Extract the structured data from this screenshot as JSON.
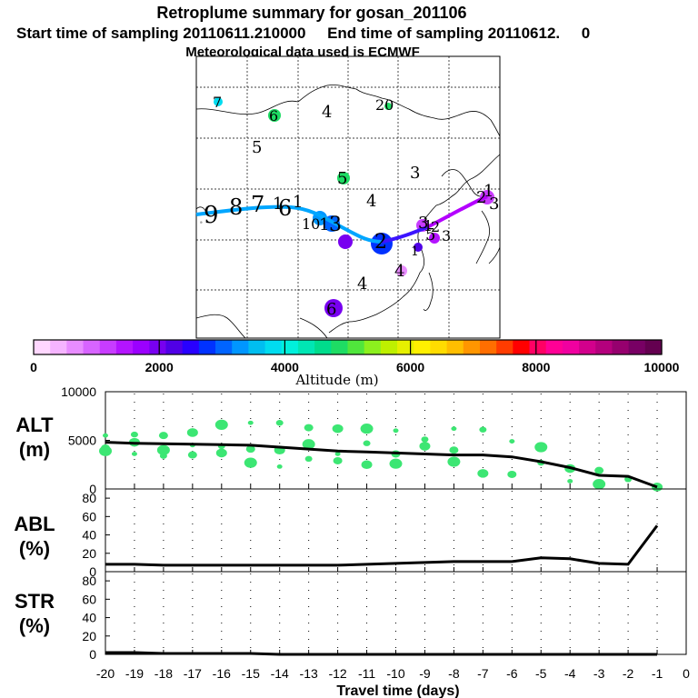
{
  "title": {
    "line1": "Retroplume summary for gosan_201106",
    "line2": "Start time of sampling 20110611.210000     End time of sampling 20110612.     0",
    "line3": "Meteorological data used is ECMWF"
  },
  "colorbar": {
    "ticks": [
      "0",
      "2000",
      "4000",
      "6000",
      "8000",
      "10000"
    ],
    "label": "Altitude  (m)",
    "colors": [
      "#ffd7ff",
      "#f5b4ff",
      "#e88cff",
      "#d764ff",
      "#c83cff",
      "#b414ff",
      "#9b00ff",
      "#7800f0",
      "#5000e6",
      "#2800ff",
      "#0032ff",
      "#0064ff",
      "#0096ff",
      "#00bef0",
      "#00dcf0",
      "#00f0dc",
      "#00e6b4",
      "#00dc8c",
      "#1edc64",
      "#50e63c",
      "#8cf01e",
      "#bef000",
      "#e6f000",
      "#fff000",
      "#ffdc00",
      "#ffbe00",
      "#ff9600",
      "#ff6e00",
      "#ff3c00",
      "#ff0000",
      "#ff0064",
      "#ff0096",
      "#f000a0",
      "#d2008c",
      "#b4007d",
      "#96006e",
      "#780064",
      "#640050"
    ]
  },
  "map": {
    "path_labels": [
      "9",
      "8",
      "7",
      "6",
      "1",
      "1",
      "10",
      "1",
      "3",
      "2",
      "1",
      "3",
      "2",
      "3",
      "1",
      "2",
      "1",
      "3"
    ],
    "cluster_labels": [
      "7",
      "6",
      "4",
      "20",
      "5",
      "5",
      "3",
      "4",
      "5",
      "4",
      "4",
      "6",
      "9"
    ]
  },
  "chart_data": [
    {
      "type": "line",
      "panel": "ALT",
      "ylabel": "ALT",
      "yunit": "(m)",
      "ylim": [
        0,
        10000
      ],
      "yticks": [
        "10000",
        "5000",
        "0"
      ],
      "x": [
        -20,
        -19,
        -18,
        -17,
        -16,
        -15,
        -14,
        -13,
        -12,
        -11,
        -10,
        -9,
        -8,
        -7,
        -6,
        -5,
        -4,
        -3,
        -2,
        -1
      ],
      "series": [
        {
          "name": "mean altitude",
          "values": [
            4800,
            4700,
            4650,
            4600,
            4550,
            4500,
            4300,
            4100,
            3900,
            3800,
            3700,
            3600,
            3500,
            3500,
            3300,
            2800,
            2200,
            1400,
            1300,
            200
          ]
        }
      ],
      "cluster_points": {
        "x": [
          -20,
          -20,
          -20,
          -19,
          -19,
          -19,
          -18,
          -18,
          -18,
          -17,
          -17,
          -17,
          -16,
          -16,
          -16,
          -15,
          -15,
          -15,
          -14,
          -14,
          -14,
          -13,
          -13,
          -13,
          -12,
          -12,
          -12,
          -11,
          -11,
          -11,
          -10,
          -10,
          -10,
          -9,
          -9,
          -8,
          -8,
          -8,
          -7,
          -7,
          -6,
          -6,
          -5,
          -5,
          -4,
          -4,
          -3,
          -3,
          -2,
          -1
        ],
        "y": [
          5500,
          4200,
          3900,
          5600,
          4800,
          3600,
          5500,
          4000,
          3400,
          5800,
          4500,
          3500,
          6600,
          4400,
          3700,
          6800,
          4100,
          2700,
          6800,
          4000,
          2300,
          6300,
          4600,
          3100,
          6200,
          3600,
          2900,
          6200,
          4700,
          2500,
          6000,
          3600,
          2600,
          5100,
          4400,
          6200,
          4000,
          2800,
          6100,
          1600,
          4900,
          1500,
          4300,
          2700,
          2100,
          800,
          1900,
          500,
          1000,
          200
        ]
      }
    },
    {
      "type": "line",
      "panel": "ABL",
      "ylabel": "ABL",
      "yunit": "(%)",
      "ylim": [
        0,
        90
      ],
      "yticks": [
        "80",
        "60",
        "40",
        "20",
        "0"
      ],
      "x": [
        -20,
        -19,
        -18,
        -17,
        -16,
        -15,
        -14,
        -13,
        -12,
        -11,
        -10,
        -9,
        -8,
        -7,
        -6,
        -5,
        -4,
        -3,
        -2,
        -1
      ],
      "series": [
        {
          "name": "ABL fraction",
          "values": [
            8,
            8,
            7,
            7,
            7,
            7,
            7,
            7,
            7,
            8,
            9,
            10,
            11,
            11,
            11,
            15,
            14,
            9,
            8,
            50
          ]
        }
      ]
    },
    {
      "type": "line",
      "panel": "STR",
      "ylabel": "STR",
      "yunit": "(%)",
      "ylim": [
        0,
        90
      ],
      "yticks": [
        "80",
        "60",
        "40",
        "20",
        "0"
      ],
      "x": [
        -20,
        -19,
        -18,
        -17,
        -16,
        -15,
        -14,
        -13,
        -12,
        -11,
        -10,
        -9,
        -8,
        -7,
        -6,
        -5,
        -4,
        -3,
        -2,
        -1
      ],
      "series": [
        {
          "name": "stratospheric fraction",
          "values": [
            2,
            2,
            1,
            1,
            1,
            1,
            0,
            0,
            0,
            0,
            0,
            0,
            0,
            0,
            0,
            0,
            0,
            0,
            0,
            0
          ]
        }
      ]
    }
  ],
  "xaxis": {
    "ticks": [
      "-20",
      "-19",
      "-18",
      "-17",
      "-16",
      "-15",
      "-14",
      "-13",
      "-12",
      "-11",
      "-10",
      "-9",
      "-8",
      "-7",
      "-6",
      "-5",
      "-4",
      "-3",
      "-2",
      "-1",
      "0"
    ],
    "label": "Travel time (days)"
  }
}
